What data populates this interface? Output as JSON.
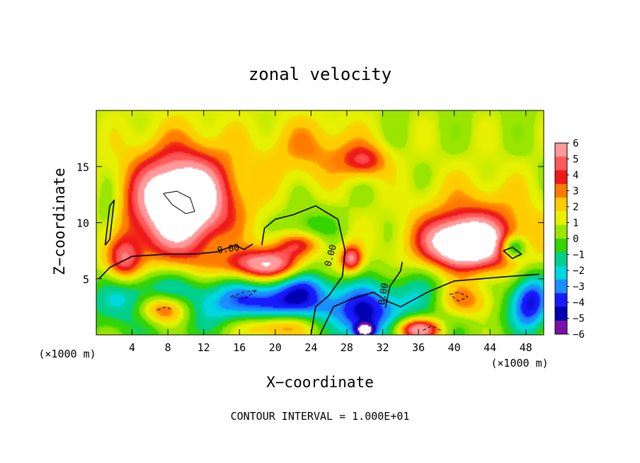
{
  "chart_data": {
    "type": "heatmap",
    "title": "zonal velocity",
    "xlabel": "X−coordinate",
    "ylabel": "Z−coordinate",
    "x_unit_left": "(×1000 m)",
    "x_unit_right": "(×1000 m)",
    "xlim": [
      0,
      50
    ],
    "ylim": [
      0,
      20
    ],
    "xticks": [
      4,
      8,
      12,
      16,
      20,
      24,
      28,
      32,
      36,
      40,
      44,
      48
    ],
    "yticks": [
      5,
      10,
      15
    ],
    "footer": "CONTOUR INTERVAL = 1.000E+01",
    "contour_labels": [
      "0.00",
      "0.00",
      "0.00"
    ],
    "colorbar": {
      "ticks": [
        6,
        5,
        4,
        3,
        2,
        1,
        0,
        -1,
        -2,
        -3,
        -4,
        -5,
        -6
      ],
      "colors": [
        "#ff9a9a",
        "#ff5a5a",
        "#ee1a1a",
        "#ff7a00",
        "#ffcc00",
        "#e6f000",
        "#9ae600",
        "#36d400",
        "#00d08a",
        "#00d8e0",
        "#1a90ff",
        "#1a1aff",
        "#0000b0",
        "#7a10a8"
      ]
    },
    "blobs": [
      {
        "x": 9.5,
        "y": 12.0,
        "rx": 4.8,
        "ry": 3.8,
        "v": 6.5
      },
      {
        "x": 9.5,
        "y": 10.5,
        "rx": 7.5,
        "ry": 7.0,
        "v": 3.0
      },
      {
        "x": 20.0,
        "y": 6.2,
        "rx": 5.8,
        "ry": 1.4,
        "v": 6.4
      },
      {
        "x": 23.0,
        "y": 8.0,
        "rx": 3.0,
        "ry": 1.2,
        "v": 5.5
      },
      {
        "x": 20.0,
        "y": 2.8,
        "rx": 8.0,
        "ry": 2.6,
        "v": -5.0
      },
      {
        "x": 23.5,
        "y": 7.0,
        "rx": 3.0,
        "ry": 3.0,
        "v": -4.2
      },
      {
        "x": 7.5,
        "y": 2.3,
        "rx": 3.2,
        "ry": 1.5,
        "v": 6.5
      },
      {
        "x": 6.5,
        "y": 3.0,
        "rx": 6.5,
        "ry": 2.8,
        "v": -5.0
      },
      {
        "x": 3.0,
        "y": 6.5,
        "rx": 2.0,
        "ry": 2.0,
        "v": 4.0
      },
      {
        "x": 41.0,
        "y": 8.2,
        "rx": 4.0,
        "ry": 2.0,
        "v": 6.5
      },
      {
        "x": 42.5,
        "y": 8.0,
        "rx": 7.0,
        "ry": 5.0,
        "v": 3.5
      },
      {
        "x": 41.0,
        "y": 3.0,
        "rx": 4.0,
        "ry": 1.8,
        "v": 6.0
      },
      {
        "x": 40.0,
        "y": 3.2,
        "rx": 7.5,
        "ry": 2.6,
        "v": -5.2
      },
      {
        "x": 46.5,
        "y": 7.8,
        "rx": 1.5,
        "ry": 1.0,
        "v": -4.0
      },
      {
        "x": 48.5,
        "y": 3.0,
        "rx": 2.2,
        "ry": 2.8,
        "v": -4.5
      },
      {
        "x": 36.0,
        "y": 0.5,
        "rx": 2.5,
        "ry": 1.0,
        "v": 6.0
      },
      {
        "x": 30.0,
        "y": 1.5,
        "rx": 3.0,
        "ry": 2.5,
        "v": -4.0
      },
      {
        "x": 30.0,
        "y": 0.4,
        "rx": 1.0,
        "ry": 0.6,
        "v": -6.0
      },
      {
        "x": 20.0,
        "y": 0.8,
        "rx": 4.5,
        "ry": 1.2,
        "v": 4.5
      },
      {
        "x": 30.0,
        "y": 15.5,
        "rx": 2.5,
        "ry": 1.4,
        "v": 3.0
      },
      {
        "x": 28.5,
        "y": 6.8,
        "rx": 1.2,
        "ry": 1.2,
        "v": 4.5
      },
      {
        "x": 1.5,
        "y": 10.5,
        "rx": 1.5,
        "ry": 3.0,
        "v": -1.5
      },
      {
        "x": 24.5,
        "y": 16.5,
        "rx": 6.0,
        "ry": 3.0,
        "v": 2.0
      },
      {
        "x": 14.0,
        "y": 7.5,
        "rx": 3.0,
        "ry": 3.0,
        "v": -1.0
      }
    ],
    "contours": [
      {
        "style": "solid",
        "points": [
          [
            0.3,
            5.0
          ],
          [
            1.5,
            6.0
          ],
          [
            4.0,
            7.0
          ],
          [
            8.0,
            7.2
          ],
          [
            11.0,
            7.2
          ],
          [
            13.5,
            7.4
          ],
          [
            15.5,
            8.0
          ],
          [
            16.5,
            7.6
          ],
          [
            17.5,
            8.1
          ]
        ]
      },
      {
        "style": "solid",
        "points": [
          [
            18.5,
            8.0
          ],
          [
            18.8,
            9.5
          ],
          [
            20.0,
            10.3
          ],
          [
            22.0,
            10.7
          ],
          [
            24.5,
            11.5
          ],
          [
            27.0,
            10.3
          ],
          [
            27.8,
            7.5
          ],
          [
            27.5,
            5.2
          ],
          [
            26.0,
            3.5
          ],
          [
            24.5,
            2.5
          ],
          [
            24.0,
            0.0
          ]
        ]
      },
      {
        "style": "solid",
        "points": [
          [
            25.0,
            0.0
          ],
          [
            26.5,
            2.5
          ],
          [
            28.5,
            3.2
          ],
          [
            31.0,
            3.8
          ],
          [
            32.5,
            3.0
          ],
          [
            34.0,
            2.5
          ],
          [
            37.0,
            3.8
          ],
          [
            40.0,
            4.8
          ],
          [
            43.0,
            5.0
          ],
          [
            46.0,
            5.2
          ],
          [
            49.5,
            5.4
          ]
        ]
      },
      {
        "style": "solid",
        "points": [
          [
            1.0,
            8.0
          ],
          [
            1.5,
            11.5
          ],
          [
            2.0,
            12.0
          ],
          [
            1.5,
            8.5
          ],
          [
            1.0,
            8.0
          ]
        ]
      },
      {
        "style": "solid",
        "points": [
          [
            45.5,
            7.5
          ],
          [
            46.5,
            7.8
          ],
          [
            47.5,
            7.2
          ],
          [
            46.5,
            6.8
          ],
          [
            45.5,
            7.5
          ]
        ]
      },
      {
        "style": "solid",
        "points": [
          [
            32.3,
            2.4
          ],
          [
            32.8,
            4.3
          ],
          [
            34.0,
            5.7
          ],
          [
            34.2,
            6.5
          ]
        ]
      },
      {
        "style": "thin",
        "points": [
          [
            7.5,
            12.6
          ],
          [
            9.0,
            12.8
          ],
          [
            10.5,
            12.2
          ],
          [
            11.0,
            11.0
          ],
          [
            10.0,
            10.8
          ],
          [
            8.5,
            11.6
          ],
          [
            7.5,
            12.6
          ]
        ]
      },
      {
        "style": "dashed",
        "points": [
          [
            15.0,
            3.4
          ],
          [
            16.5,
            3.8
          ],
          [
            18.0,
            4.0
          ],
          [
            16.5,
            3.2
          ],
          [
            15.0,
            3.4
          ]
        ]
      },
      {
        "style": "dashed",
        "points": [
          [
            6.8,
            2.2
          ],
          [
            7.8,
            2.5
          ],
          [
            8.5,
            2.2
          ]
        ]
      },
      {
        "style": "dashed",
        "points": [
          [
            39.5,
            3.6
          ],
          [
            40.5,
            3.8
          ],
          [
            41.5,
            3.4
          ],
          [
            40.5,
            3.0
          ],
          [
            39.5,
            3.6
          ]
        ]
      },
      {
        "style": "dashed",
        "points": [
          [
            36.5,
            0.4
          ],
          [
            37.5,
            0.8
          ],
          [
            38.5,
            0.4
          ]
        ]
      }
    ]
  }
}
